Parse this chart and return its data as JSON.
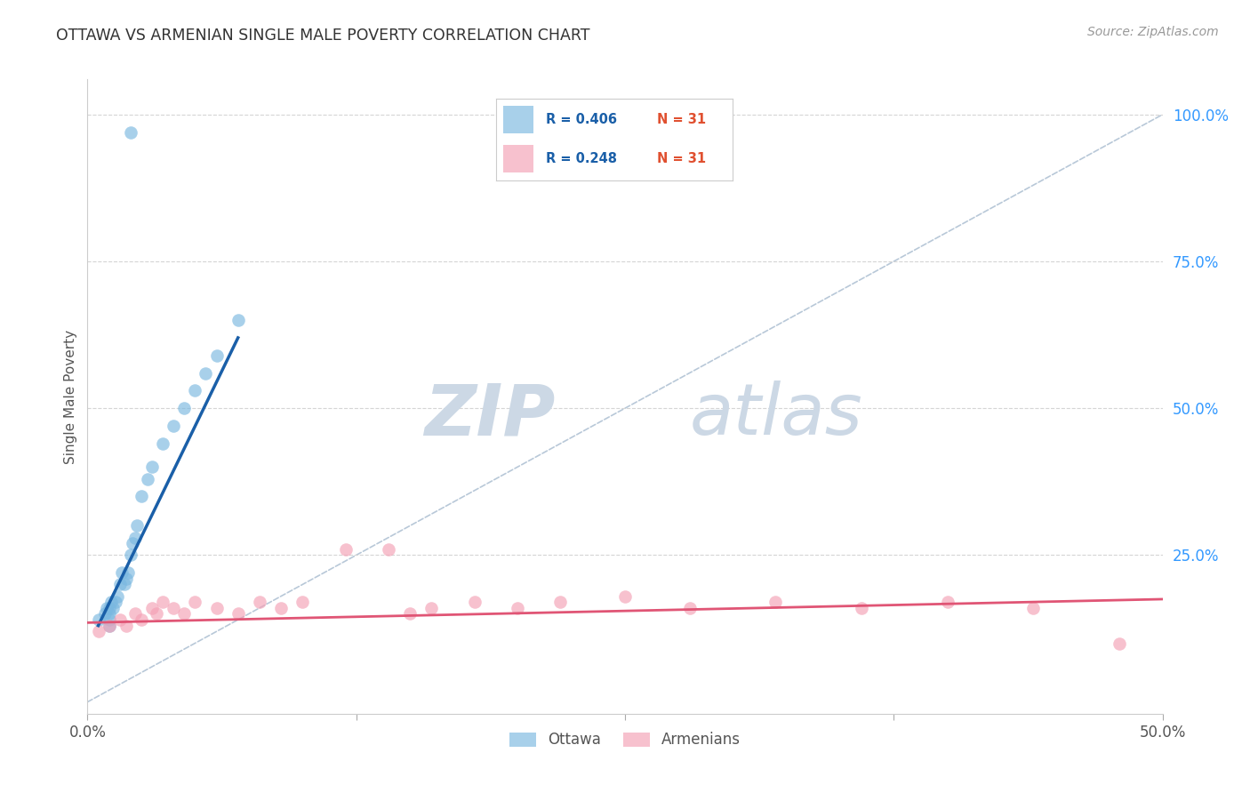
{
  "title": "OTTAWA VS ARMENIAN SINGLE MALE POVERTY CORRELATION CHART",
  "source": "Source: ZipAtlas.com",
  "ylabel": "Single Male Poverty",
  "xlim": [
    0.0,
    0.5
  ],
  "ylim": [
    -0.02,
    1.06
  ],
  "ottawa_color": "#7ab8e0",
  "armenian_color": "#f4a0b5",
  "blue_line_color": "#1a5fa8",
  "pink_line_color": "#e05575",
  "diagonal_color": "#b8c8d8",
  "watermark_zip": "ZIP",
  "watermark_atlas": "atlas",
  "watermark_color": "#ccd8e5",
  "background_color": "#ffffff",
  "grid_color": "#d5d5d5",
  "legend_r_color": "#1a5fa8",
  "legend_n_color": "#e05030",
  "ottawa_x": [
    0.005,
    0.008,
    0.009,
    0.01,
    0.01,
    0.01,
    0.01,
    0.011,
    0.012,
    0.013,
    0.014,
    0.015,
    0.016,
    0.017,
    0.018,
    0.019,
    0.02,
    0.021,
    0.022,
    0.023,
    0.025,
    0.028,
    0.03,
    0.035,
    0.04,
    0.045,
    0.05,
    0.055,
    0.06,
    0.07,
    0.02
  ],
  "ottawa_y": [
    0.14,
    0.15,
    0.16,
    0.14,
    0.13,
    0.15,
    0.16,
    0.17,
    0.16,
    0.17,
    0.18,
    0.2,
    0.22,
    0.2,
    0.21,
    0.22,
    0.25,
    0.27,
    0.28,
    0.3,
    0.35,
    0.38,
    0.4,
    0.44,
    0.47,
    0.5,
    0.53,
    0.56,
    0.59,
    0.65,
    0.97
  ],
  "armenian_x": [
    0.005,
    0.01,
    0.015,
    0.018,
    0.022,
    0.025,
    0.03,
    0.032,
    0.035,
    0.04,
    0.045,
    0.05,
    0.06,
    0.07,
    0.08,
    0.09,
    0.1,
    0.12,
    0.14,
    0.15,
    0.16,
    0.18,
    0.2,
    0.22,
    0.25,
    0.28,
    0.32,
    0.36,
    0.4,
    0.44,
    0.48
  ],
  "armenian_y": [
    0.12,
    0.13,
    0.14,
    0.13,
    0.15,
    0.14,
    0.16,
    0.15,
    0.17,
    0.16,
    0.15,
    0.17,
    0.16,
    0.15,
    0.17,
    0.16,
    0.17,
    0.26,
    0.26,
    0.15,
    0.16,
    0.17,
    0.16,
    0.17,
    0.18,
    0.16,
    0.17,
    0.16,
    0.17,
    0.16,
    0.1
  ],
  "blue_line_x": [
    0.005,
    0.07
  ],
  "blue_line_y": [
    0.13,
    0.62
  ],
  "pink_line_x": [
    0.0,
    0.5
  ],
  "pink_line_y": [
    0.135,
    0.175
  ]
}
